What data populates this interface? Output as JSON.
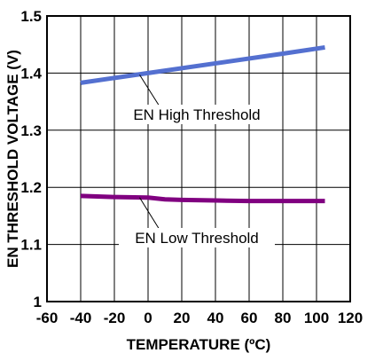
{
  "chart_data": {
    "type": "line",
    "xlabel": "TEMPERATURE (ºC)",
    "ylabel": "EN THRESHOLD VOLTAGE (V)",
    "xlim": [
      -60,
      120
    ],
    "ylim": [
      1.0,
      1.5
    ],
    "x_ticks": [
      "-60",
      "-40",
      "-20",
      "0",
      "20",
      "40",
      "60",
      "80",
      "100",
      "120"
    ],
    "y_ticks": [
      "1",
      "1.1",
      "1.2",
      "1.3",
      "1.4",
      "1.5"
    ],
    "grid": true,
    "series": [
      {
        "name": "EN High Threshold",
        "color": "#5470d0",
        "x": [
          -40,
          0,
          40,
          80,
          105
        ],
        "y": [
          1.383,
          1.4,
          1.417,
          1.434,
          1.445
        ]
      },
      {
        "name": "EN Low Threshold",
        "color": "#800080",
        "x": [
          -40,
          -20,
          0,
          10,
          20,
          40,
          60,
          80,
          105
        ],
        "y": [
          1.185,
          1.183,
          1.182,
          1.179,
          1.178,
          1.177,
          1.176,
          1.176,
          1.176
        ]
      }
    ],
    "annotations": [
      {
        "text": "EN High Threshold",
        "point_x": -5,
        "point_y": 1.397
      },
      {
        "text": "EN Low Threshold",
        "point_x": -5,
        "point_y": 1.182
      }
    ]
  }
}
